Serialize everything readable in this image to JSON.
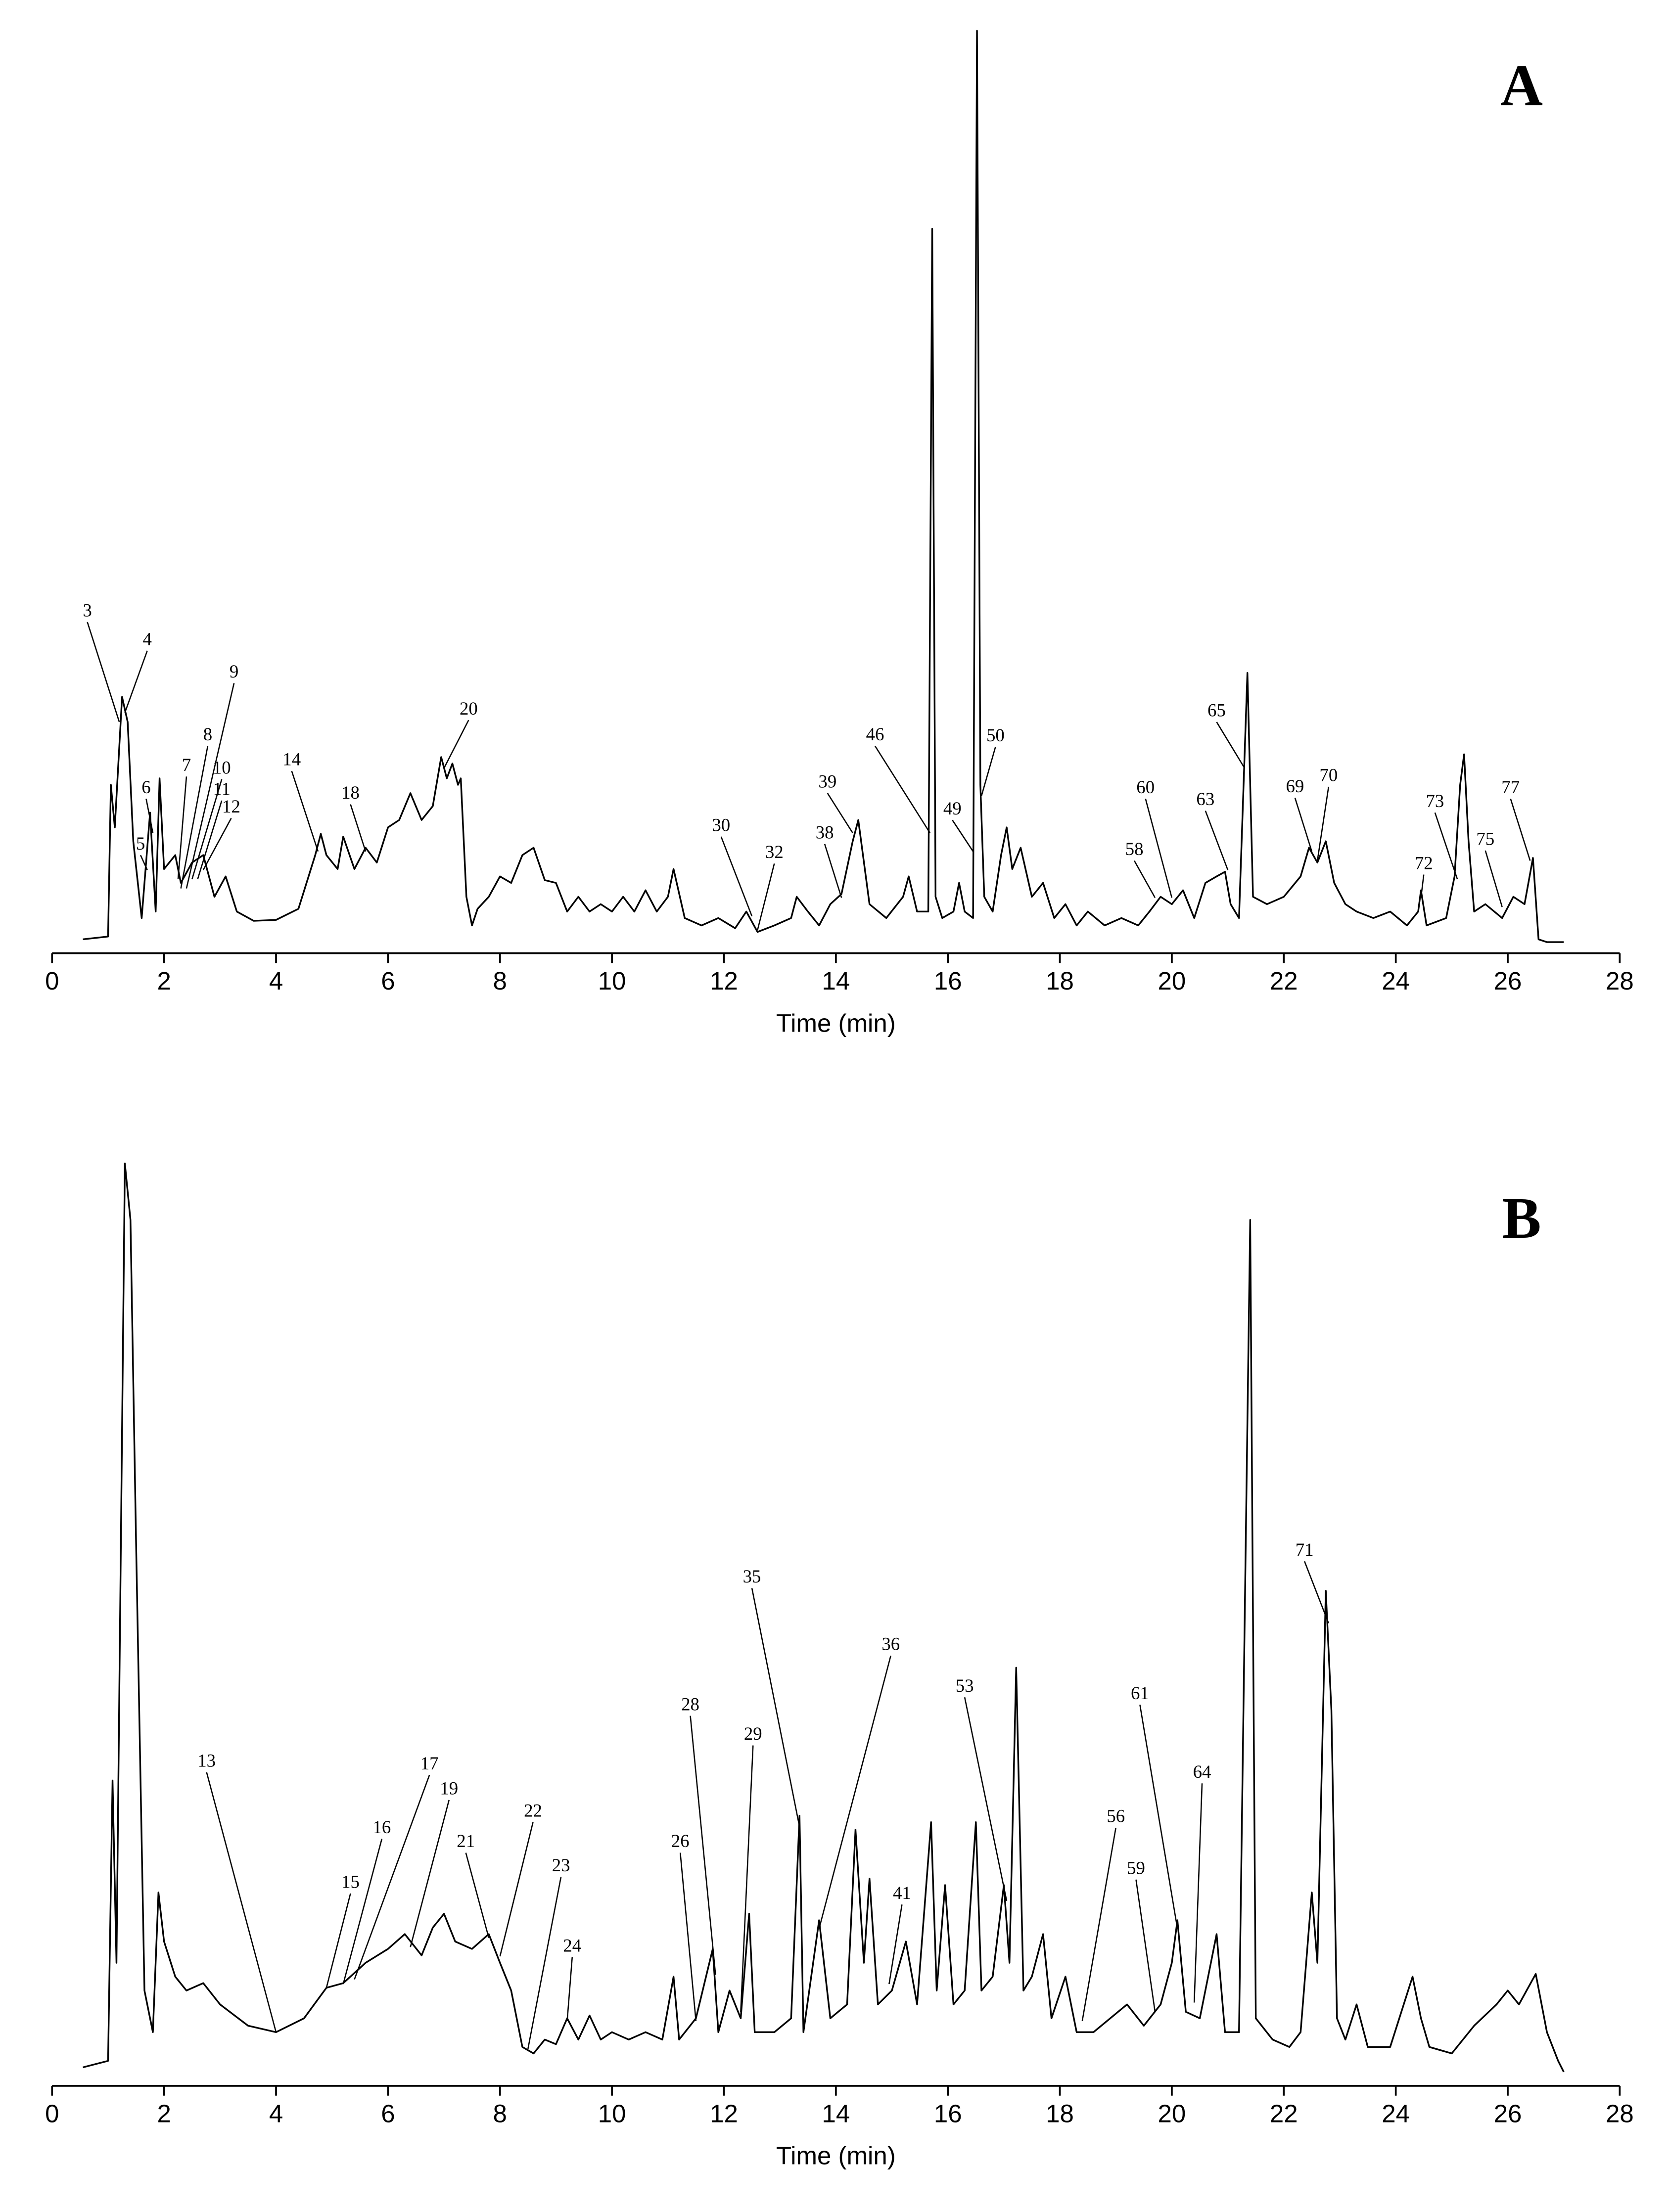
{
  "chart_data": [
    {
      "type": "line",
      "panel_label": "A",
      "x_label": "Time (min)",
      "color": "#000000",
      "xlim": [
        0,
        28
      ],
      "ylim": [
        0,
        100
      ],
      "xticks": [
        0,
        2,
        4,
        6,
        8,
        10,
        12,
        14,
        16,
        18,
        20,
        22,
        24,
        26,
        28
      ],
      "x": [
        0.55,
        1.0,
        1.05,
        1.12,
        1.25,
        1.35,
        1.45,
        1.6,
        1.75,
        1.85,
        1.92,
        2.0,
        2.2,
        2.3,
        2.5,
        2.7,
        2.9,
        3.1,
        3.3,
        3.6,
        4.0,
        4.4,
        4.7,
        4.8,
        4.9,
        5.1,
        5.2,
        5.4,
        5.6,
        5.8,
        6.0,
        6.2,
        6.4,
        6.6,
        6.8,
        6.95,
        7.05,
        7.15,
        7.25,
        7.3,
        7.4,
        7.5,
        7.6,
        7.8,
        8.0,
        8.2,
        8.4,
        8.6,
        8.8,
        9.0,
        9.2,
        9.4,
        9.6,
        9.8,
        10.0,
        10.2,
        10.4,
        10.6,
        10.8,
        11.0,
        11.1,
        11.3,
        11.6,
        11.9,
        12.2,
        12.4,
        12.6,
        12.9,
        13.2,
        13.3,
        13.5,
        13.7,
        13.9,
        14.1,
        14.3,
        14.4,
        14.6,
        14.9,
        15.2,
        15.3,
        15.45,
        15.65,
        15.72,
        15.78,
        15.9,
        16.1,
        16.2,
        16.3,
        16.45,
        16.52,
        16.58,
        16.65,
        16.8,
        16.95,
        17.05,
        17.15,
        17.3,
        17.5,
        17.7,
        17.9,
        18.1,
        18.3,
        18.5,
        18.8,
        19.1,
        19.4,
        19.6,
        19.8,
        20.0,
        20.2,
        20.4,
        20.6,
        20.8,
        20.95,
        21.05,
        21.2,
        21.35,
        21.45,
        21.7,
        22.0,
        22.3,
        22.45,
        22.6,
        22.75,
        22.9,
        23.1,
        23.3,
        23.6,
        23.9,
        24.2,
        24.4,
        24.45,
        24.55,
        24.9,
        25.05,
        25.15,
        25.22,
        25.3,
        25.4,
        25.6,
        25.9,
        26.1,
        26.3,
        26.45,
        26.55,
        26.7,
        27.0
      ],
      "values": [
        1.5,
        1.8,
        18.2,
        13.6,
        27.7,
        25,
        12.1,
        3.8,
        15.2,
        4.5,
        18.9,
        9.1,
        10.6,
        7.6,
        9.8,
        10.6,
        6.1,
        8.3,
        4.5,
        3.5,
        3.6,
        4.8,
        10.6,
        12.9,
        10.6,
        9.1,
        12.6,
        9.1,
        11.4,
        9.8,
        13.6,
        14.4,
        17.3,
        14.4,
        15.9,
        21.2,
        18.9,
        20.5,
        18.2,
        18.9,
        6.1,
        3.0,
        4.8,
        6.1,
        8.3,
        7.6,
        10.6,
        11.4,
        7.9,
        7.6,
        4.5,
        6.1,
        4.5,
        5.3,
        4.5,
        6.1,
        4.5,
        6.8,
        4.5,
        6.1,
        9.1,
        3.8,
        3.0,
        3.8,
        2.7,
        4.5,
        2.3,
        3.0,
        3.8,
        6.1,
        4.5,
        3.0,
        5.3,
        6.4,
        12.1,
        14.4,
        5.3,
        3.8,
        6.1,
        8.3,
        4.5,
        4.5,
        78.3,
        6.1,
        3.8,
        4.5,
        7.6,
        4.5,
        3.8,
        99.7,
        18.2,
        6.1,
        4.5,
        10.6,
        13.6,
        9.1,
        11.4,
        6.1,
        7.6,
        3.8,
        5.3,
        3.0,
        4.5,
        3.0,
        3.8,
        3.0,
        4.5,
        6.1,
        5.3,
        6.8,
        3.8,
        7.6,
        8.3,
        8.8,
        5.3,
        3.8,
        30.3,
        6.1,
        5.3,
        6.1,
        8.3,
        11.4,
        9.8,
        12.1,
        7.6,
        5.3,
        4.5,
        3.8,
        4.5,
        3.0,
        4.5,
        6.8,
        3.0,
        3.8,
        8.3,
        18.2,
        21.5,
        12.1,
        4.5,
        5.3,
        3.8,
        6.1,
        5.3,
        10.3,
        1.5,
        1.2,
        1.2
      ],
      "annotations": [
        {
          "text": "3",
          "xytext": [
            0.63,
            36.4
          ],
          "xy": [
            1.2,
            25
          ]
        },
        {
          "text": "4",
          "xytext": [
            1.7,
            33.3
          ],
          "xy": [
            1.3,
            26
          ]
        },
        {
          "text": "5",
          "xytext": [
            1.58,
            11.2
          ],
          "xy": [
            1.7,
            9
          ]
        },
        {
          "text": "6",
          "xytext": [
            1.68,
            17.3
          ],
          "xy": [
            1.8,
            13
          ]
        },
        {
          "text": "7",
          "xytext": [
            2.4,
            19.7
          ],
          "xy": [
            2.25,
            8
          ]
        },
        {
          "text": "8",
          "xytext": [
            2.78,
            23
          ],
          "xy": [
            2.3,
            7
          ]
        },
        {
          "text": "9",
          "xytext": [
            3.25,
            29.8
          ],
          "xy": [
            2.4,
            7
          ]
        },
        {
          "text": "10",
          "xytext": [
            3.03,
            19.4
          ],
          "xy": [
            2.5,
            8
          ]
        },
        {
          "text": "11",
          "xytext": [
            3.03,
            17.1
          ],
          "xy": [
            2.6,
            8
          ]
        },
        {
          "text": "12",
          "xytext": [
            3.2,
            15.2
          ],
          "xy": [
            2.7,
            9
          ]
        },
        {
          "text": "14",
          "xytext": [
            4.28,
            20.3
          ],
          "xy": [
            4.75,
            11
          ]
        },
        {
          "text": "18",
          "xytext": [
            5.33,
            16.7
          ],
          "xy": [
            5.6,
            11
          ]
        },
        {
          "text": "20",
          "xytext": [
            7.44,
            25.8
          ],
          "xy": [
            7.0,
            20
          ]
        },
        {
          "text": "30",
          "xytext": [
            11.95,
            13.2
          ],
          "xy": [
            12.5,
            4
          ]
        },
        {
          "text": "32",
          "xytext": [
            12.9,
            10.3
          ],
          "xy": [
            12.6,
            2.5
          ]
        },
        {
          "text": "38",
          "xytext": [
            13.8,
            12.4
          ],
          "xy": [
            14.1,
            6
          ]
        },
        {
          "text": "39",
          "xytext": [
            13.85,
            17.9
          ],
          "xy": [
            14.3,
            13
          ]
        },
        {
          "text": "46",
          "xytext": [
            14.7,
            23
          ],
          "xy": [
            15.68,
            13
          ]
        },
        {
          "text": "49",
          "xytext": [
            16.08,
            15
          ],
          "xy": [
            16.45,
            11
          ]
        },
        {
          "text": "50",
          "xytext": [
            16.85,
            22.9
          ],
          "xy": [
            16.6,
            17
          ]
        },
        {
          "text": "58",
          "xytext": [
            19.33,
            10.6
          ],
          "xy": [
            19.7,
            6
          ]
        },
        {
          "text": "60",
          "xytext": [
            19.53,
            17.3
          ],
          "xy": [
            20.0,
            6
          ]
        },
        {
          "text": "63",
          "xytext": [
            20.6,
            16
          ],
          "xy": [
            21.0,
            9
          ]
        },
        {
          "text": "65",
          "xytext": [
            20.8,
            25.6
          ],
          "xy": [
            21.3,
            20
          ]
        },
        {
          "text": "69",
          "xytext": [
            22.2,
            17.4
          ],
          "xy": [
            22.5,
            11
          ]
        },
        {
          "text": "70",
          "xytext": [
            22.8,
            18.6
          ],
          "xy": [
            22.6,
            10
          ]
        },
        {
          "text": "72",
          "xytext": [
            24.5,
            9.1
          ],
          "xy": [
            24.45,
            6
          ]
        },
        {
          "text": "73",
          "xytext": [
            24.7,
            15.8
          ],
          "xy": [
            25.1,
            8
          ]
        },
        {
          "text": "75",
          "xytext": [
            25.6,
            11.7
          ],
          "xy": [
            25.9,
            5
          ]
        },
        {
          "text": "77",
          "xytext": [
            26.05,
            17.3
          ],
          "xy": [
            26.4,
            10
          ]
        }
      ]
    },
    {
      "type": "line",
      "panel_label": "B",
      "x_label": "Time (min)",
      "color": "#000000",
      "xlim": [
        0,
        28
      ],
      "ylim": [
        0,
        100
      ],
      "xticks": [
        0,
        2,
        4,
        6,
        8,
        10,
        12,
        14,
        16,
        18,
        20,
        22,
        24,
        26,
        28
      ],
      "x": [
        0.55,
        1.0,
        1.08,
        1.15,
        1.3,
        1.4,
        1.5,
        1.65,
        1.8,
        1.9,
        2.0,
        2.2,
        2.4,
        2.7,
        3.0,
        3.5,
        4.0,
        4.5,
        4.9,
        5.2,
        5.6,
        6.0,
        6.3,
        6.6,
        6.8,
        7.0,
        7.2,
        7.5,
        7.8,
        8.0,
        8.2,
        8.4,
        8.6,
        8.8,
        9.0,
        9.2,
        9.4,
        9.6,
        9.8,
        10.0,
        10.3,
        10.6,
        10.9,
        11.1,
        11.2,
        11.5,
        11.8,
        11.9,
        12.1,
        12.3,
        12.45,
        12.55,
        12.9,
        13.2,
        13.35,
        13.42,
        13.7,
        13.9,
        14.2,
        14.35,
        14.5,
        14.6,
        14.75,
        15.0,
        15.25,
        15.45,
        15.7,
        15.8,
        15.95,
        16.1,
        16.3,
        16.5,
        16.6,
        16.8,
        17.0,
        17.1,
        17.22,
        17.35,
        17.5,
        17.7,
        17.85,
        18.1,
        18.3,
        18.6,
        18.9,
        19.2,
        19.5,
        19.8,
        20.0,
        20.1,
        20.25,
        20.5,
        20.8,
        20.95,
        21.2,
        21.4,
        21.5,
        21.8,
        22.1,
        22.3,
        22.5,
        22.6,
        22.75,
        22.85,
        22.95,
        23.1,
        23.3,
        23.5,
        23.9,
        24.3,
        24.45,
        24.6,
        25.0,
        25.4,
        25.8,
        26.0,
        26.2,
        26.5,
        26.7,
        26.9,
        27.0
      ],
      "values": [
        2.0,
        2.7,
        33,
        13.3,
        99.7,
        93.6,
        58.8,
        10.3,
        5.8,
        20.9,
        15.6,
        11.8,
        10.3,
        11.1,
        8.8,
        6.5,
        5.8,
        7.3,
        10.6,
        11.1,
        13.3,
        14.8,
        16.4,
        14.1,
        17.1,
        18.6,
        15.6,
        14.8,
        16.4,
        13.3,
        10.3,
        4.2,
        3.5,
        5.0,
        4.5,
        7.3,
        5.0,
        7.6,
        5.0,
        5.8,
        5.0,
        5.8,
        5.0,
        11.8,
        5.0,
        7.3,
        14.8,
        5.8,
        10.3,
        7.3,
        18.6,
        5.8,
        5.8,
        7.3,
        29.2,
        5.8,
        17.9,
        7.3,
        8.8,
        27.7,
        13.3,
        22.4,
        8.8,
        10.3,
        15.6,
        8.8,
        28.5,
        10.3,
        21.7,
        8.8,
        10.3,
        28.5,
        10.3,
        11.8,
        21.7,
        13.3,
        45.2,
        10.3,
        11.8,
        16.4,
        7.3,
        11.8,
        5.8,
        5.8,
        7.3,
        8.8,
        6.5,
        8.8,
        13.3,
        17.9,
        8.0,
        7.3,
        16.4,
        5.8,
        5.8,
        93.6,
        7.3,
        5.0,
        4.2,
        5.8,
        20.9,
        13.3,
        53.5,
        40.6,
        7.3,
        5.0,
        8.8,
        4.2,
        4.2,
        11.8,
        7.3,
        4.2,
        3.5,
        6.5,
        8.8,
        10.3,
        8.8,
        12.1,
        5.8,
        2.7,
        1.5
      ],
      "annotations": [
        {
          "text": "13",
          "xytext": [
            2.76,
            34.5
          ],
          "xy": [
            4.0,
            5.8
          ]
        },
        {
          "text": "15",
          "xytext": [
            5.33,
            21.4
          ],
          "xy": [
            4.9,
            10.6
          ]
        },
        {
          "text": "16",
          "xytext": [
            5.89,
            27.3
          ],
          "xy": [
            5.2,
            11
          ]
        },
        {
          "text": "17",
          "xytext": [
            6.74,
            34.2
          ],
          "xy": [
            5.4,
            11.5
          ]
        },
        {
          "text": "19",
          "xytext": [
            7.09,
            31.5
          ],
          "xy": [
            6.4,
            15
          ]
        },
        {
          "text": "21",
          "xytext": [
            7.39,
            25.8
          ],
          "xy": [
            7.8,
            16
          ]
        },
        {
          "text": "22",
          "xytext": [
            8.59,
            29.1
          ],
          "xy": [
            8.0,
            14
          ]
        },
        {
          "text": "23",
          "xytext": [
            9.09,
            23.2
          ],
          "xy": [
            8.5,
            4
          ]
        },
        {
          "text": "24",
          "xytext": [
            9.29,
            14.5
          ],
          "xy": [
            9.2,
            7
          ]
        },
        {
          "text": "26",
          "xytext": [
            11.22,
            25.8
          ],
          "xy": [
            11.5,
            7
          ]
        },
        {
          "text": "28",
          "xytext": [
            11.4,
            40.6
          ],
          "xy": [
            11.85,
            12
          ]
        },
        {
          "text": "29",
          "xytext": [
            12.52,
            37.4
          ],
          "xy": [
            12.3,
            8
          ]
        },
        {
          "text": "35",
          "xytext": [
            12.5,
            54.4
          ],
          "xy": [
            13.35,
            28
          ]
        },
        {
          "text": "36",
          "xytext": [
            14.98,
            47.1
          ],
          "xy": [
            13.7,
            17
          ]
        },
        {
          "text": "41",
          "xytext": [
            15.18,
            20.2
          ],
          "xy": [
            14.95,
            11
          ]
        },
        {
          "text": "53",
          "xytext": [
            16.3,
            42.6
          ],
          "xy": [
            17.05,
            20
          ]
        },
        {
          "text": "56",
          "xytext": [
            19.0,
            28.5
          ],
          "xy": [
            18.4,
            7
          ]
        },
        {
          "text": "59",
          "xytext": [
            19.36,
            22.9
          ],
          "xy": [
            19.7,
            8
          ]
        },
        {
          "text": "61",
          "xytext": [
            19.43,
            41.8
          ],
          "xy": [
            20.1,
            17
          ]
        },
        {
          "text": "64",
          "xytext": [
            20.54,
            33.3
          ],
          "xy": [
            20.4,
            9
          ]
        },
        {
          "text": "71",
          "xytext": [
            22.37,
            57.3
          ],
          "xy": [
            22.8,
            50
          ]
        }
      ]
    }
  ]
}
